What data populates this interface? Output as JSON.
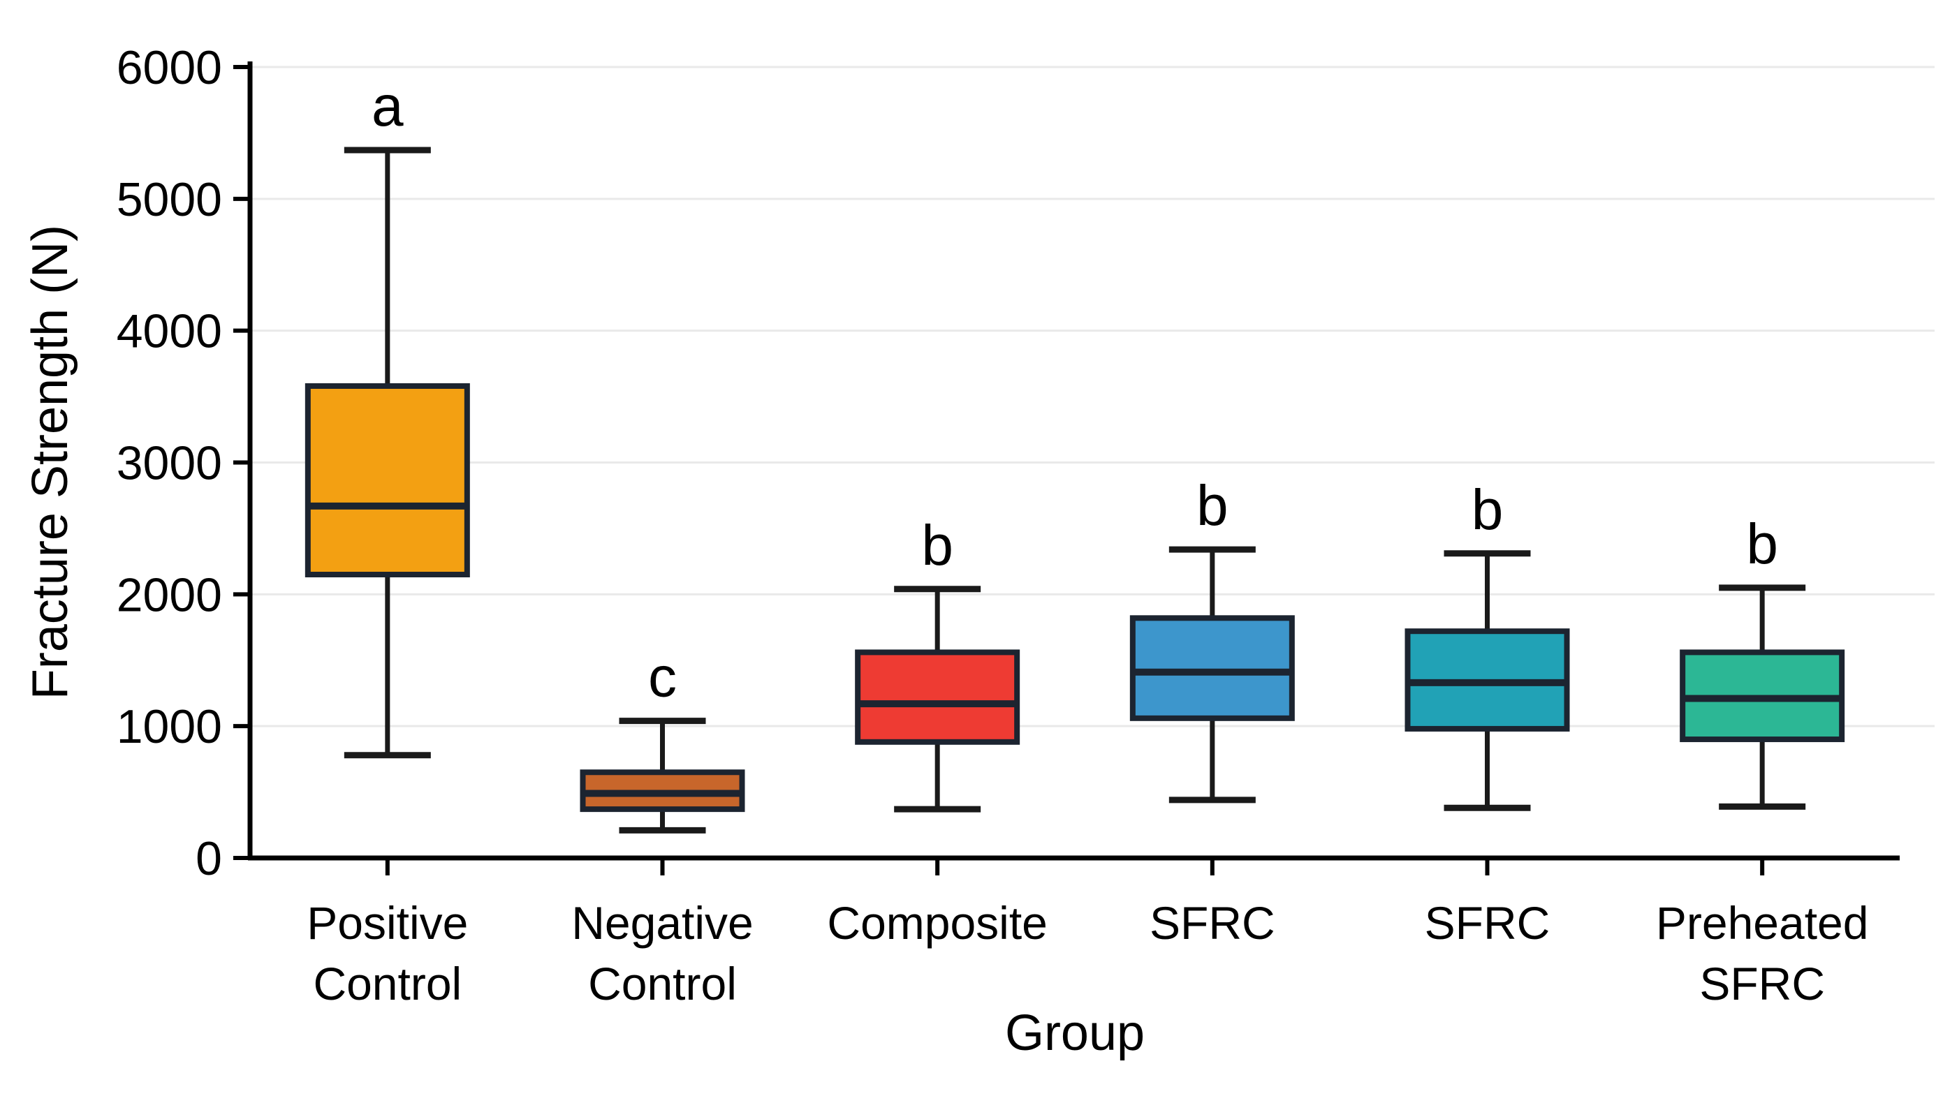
{
  "chart_data": {
    "type": "boxplot",
    "title": "",
    "xlabel": "Group",
    "ylabel": "Fracture Strength (N)",
    "ylim": [
      0,
      6000
    ],
    "yticks": [
      0,
      1000,
      2000,
      3000,
      4000,
      5000,
      6000
    ],
    "grid": "horizontal-light-gray",
    "legend": "none",
    "categories": [
      "Positive Control",
      "Negative Control",
      "Composite",
      "SFRC",
      "SFRC",
      "Preheated SFRC"
    ],
    "groups": [
      {
        "label": "Positive Control",
        "label_lines": [
          "Positive",
          "Control"
        ],
        "significance": "a",
        "color": "#F3A012",
        "whisker_low": 780,
        "q1": 2150,
        "median": 2670,
        "q3": 3580,
        "whisker_high": 5370
      },
      {
        "label": "Negative Control",
        "label_lines": [
          "Negative",
          "Control"
        ],
        "significance": "c",
        "color": "#C8662B",
        "whisker_low": 210,
        "q1": 370,
        "median": 490,
        "q3": 650,
        "whisker_high": 1040
      },
      {
        "label": "Composite",
        "label_lines": [
          "Composite"
        ],
        "significance": "b",
        "color": "#EE3B33",
        "whisker_low": 370,
        "q1": 880,
        "median": 1170,
        "q3": 1560,
        "whisker_high": 2040
      },
      {
        "label": "SFRC",
        "label_lines": [
          "SFRC"
        ],
        "significance": "b",
        "color": "#3D96CC",
        "whisker_low": 440,
        "q1": 1060,
        "median": 1410,
        "q3": 1820,
        "whisker_high": 2340
      },
      {
        "label": "SFRC",
        "label_lines": [
          "SFRC"
        ],
        "significance": "b",
        "color": "#21A2B6",
        "whisker_low": 380,
        "q1": 980,
        "median": 1330,
        "q3": 1720,
        "whisker_high": 2310
      },
      {
        "label": "Preheated SFRC",
        "label_lines": [
          "Preheated",
          "SFRC"
        ],
        "significance": "b",
        "color": "#2CB795",
        "whisker_low": 390,
        "q1": 900,
        "median": 1210,
        "q3": 1560,
        "whisker_high": 2050
      }
    ],
    "colors": {
      "box_border": "#1c2430",
      "median_line": "#1c2430",
      "whisker": "#1a1a1a",
      "gridline": "#e9e9e9",
      "axis": "#000000",
      "tick_label": "#000000",
      "significance_letter": "#000000",
      "background": "#ffffff"
    }
  }
}
